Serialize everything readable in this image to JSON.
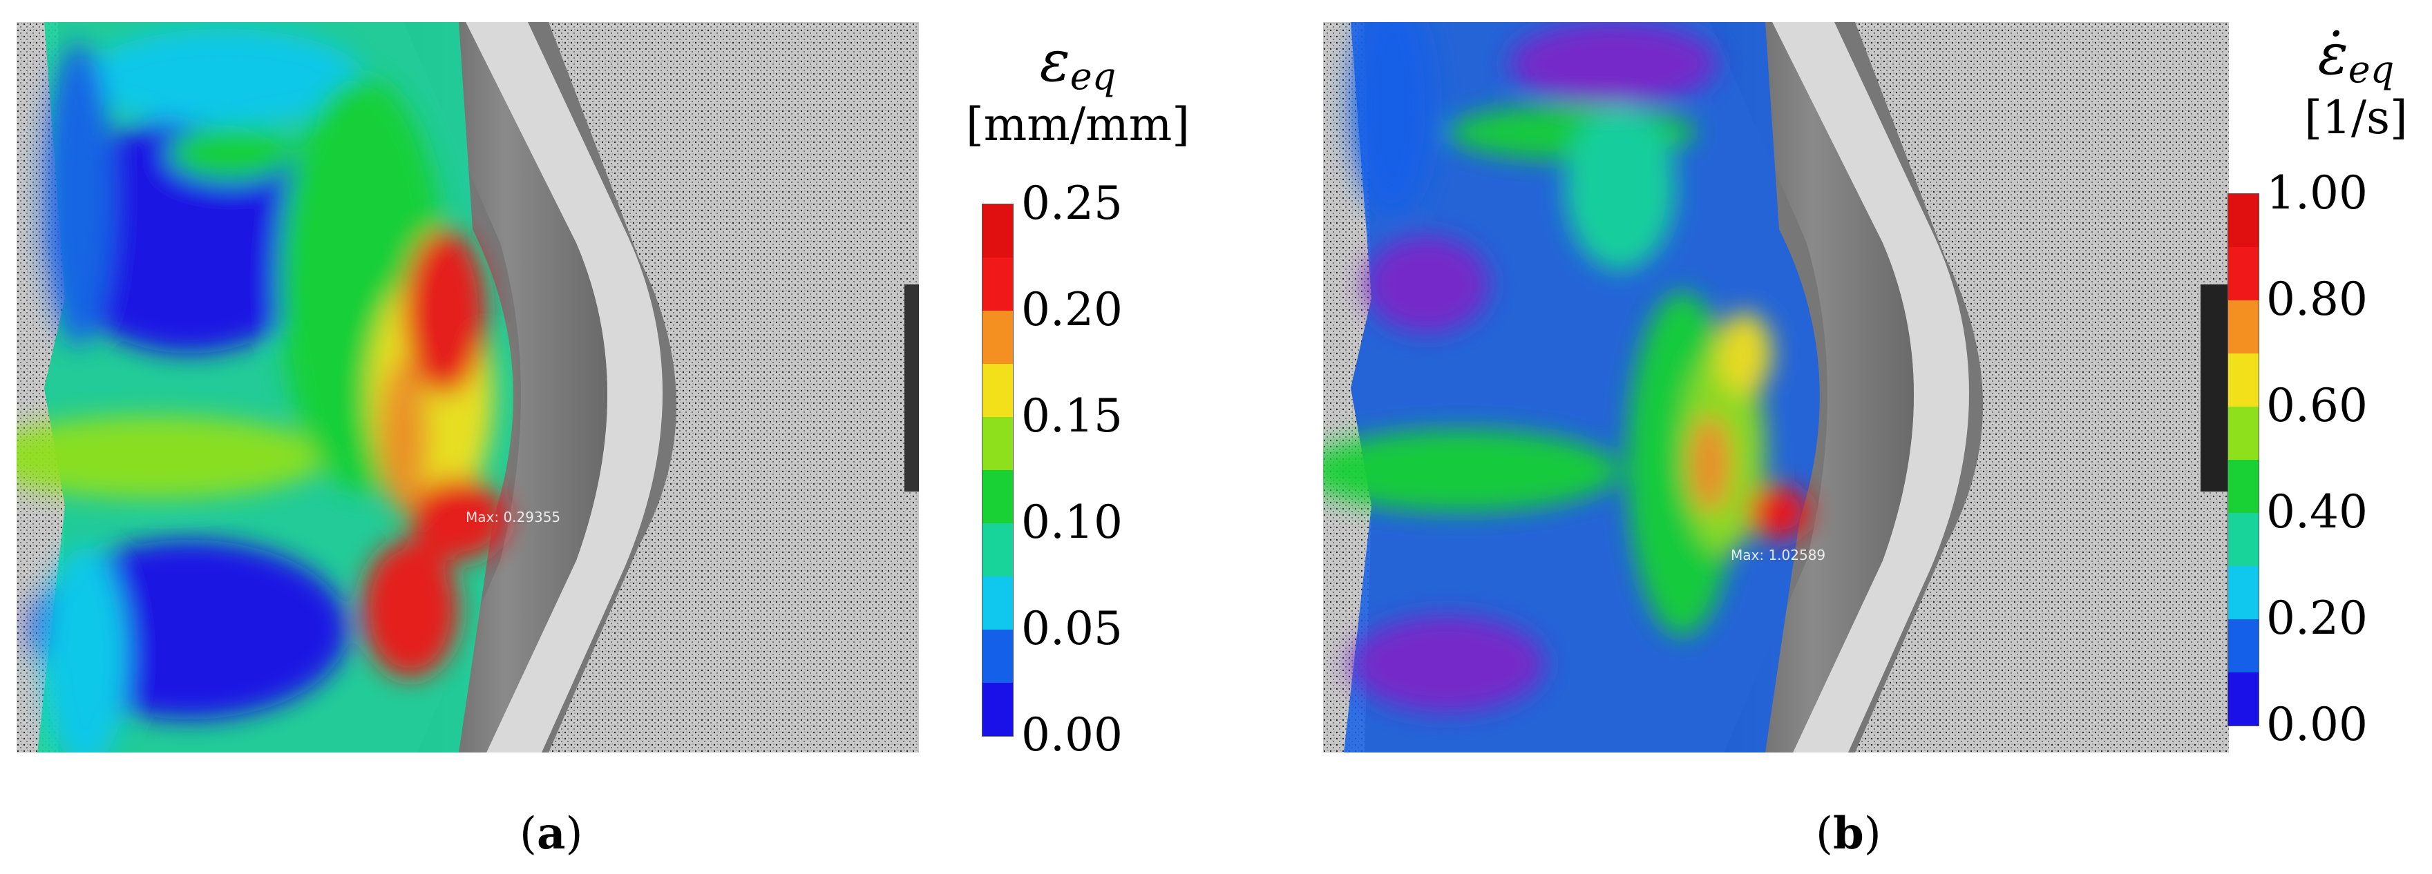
{
  "panel_a": {
    "caption_open": "(",
    "caption_letter": "a",
    "caption_close": ")",
    "overlay_label": "Max: 0.29355",
    "legend": {
      "symbol": "ε",
      "subscript": "eq",
      "unit": "[mm/mm]",
      "ticks": [
        "0.00",
        "0.05",
        "0.10",
        "0.15",
        "0.20",
        "0.25"
      ],
      "min": 0.0,
      "max": 0.25,
      "colors": [
        "#1a10e8",
        "#1560e8",
        "#10c8ee",
        "#18d49a",
        "#19d035",
        "#8fe01c",
        "#f2e01a",
        "#f49022",
        "#f01818",
        "#e01010"
      ]
    }
  },
  "panel_b": {
    "caption_open": "(",
    "caption_letter": "b",
    "caption_close": ")",
    "overlay_label": "Max: 1.02589",
    "legend": {
      "symbol": "ε̇",
      "subscript": "eq",
      "unit": "[1/s]",
      "ticks": [
        "0.00",
        "0.20",
        "0.40",
        "0.60",
        "0.80",
        "1.00"
      ],
      "min": 0.0,
      "max": 1.0,
      "colors": [
        "#1a10e8",
        "#1560e8",
        "#10c8ee",
        "#18d49a",
        "#19d035",
        "#8fe01c",
        "#f2e01a",
        "#f49022",
        "#f01818",
        "#e01010"
      ]
    }
  }
}
